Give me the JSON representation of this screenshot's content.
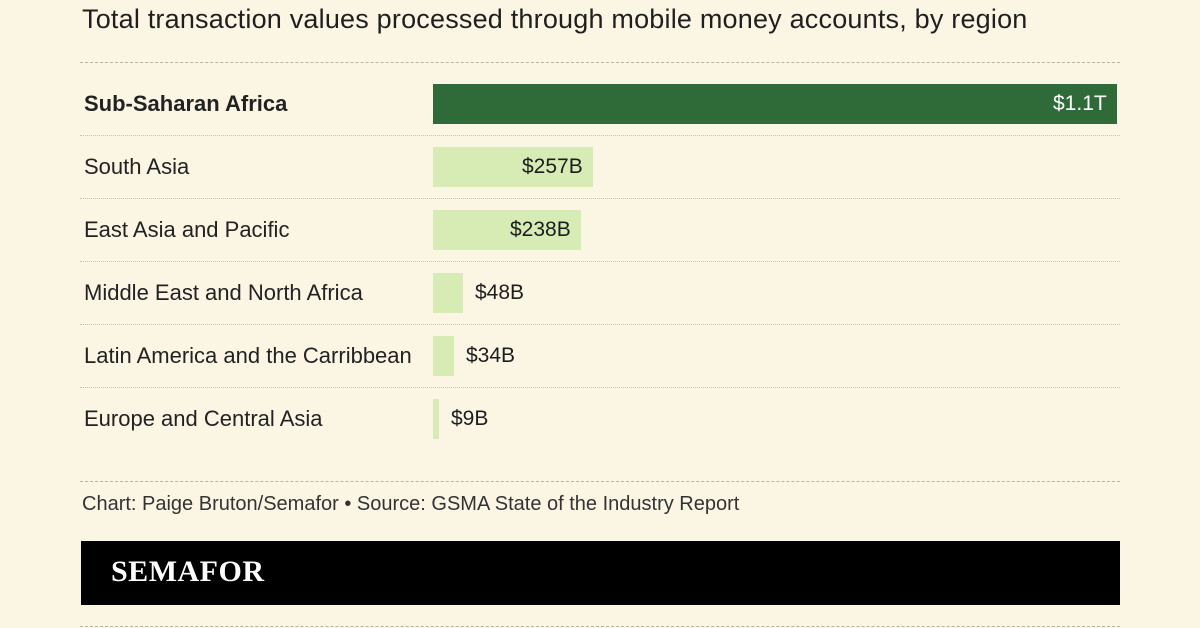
{
  "chart_data": {
    "type": "bar",
    "orientation": "horizontal",
    "title": "Total transaction values processed through mobile money accounts, by region",
    "categories": [
      "Sub-Saharan Africa",
      "South Asia",
      "East Asia and Pacific",
      "Middle East and North Africa",
      "Latin America and the Carribbean",
      "Europe and Central Asia"
    ],
    "values": [
      1100,
      257,
      238,
      48,
      34,
      9
    ],
    "unit": "billion USD",
    "value_labels": [
      "$1.1T",
      "$257B",
      "$238B",
      "$48B",
      "$34B",
      "$9B"
    ],
    "highlight_index": 0,
    "xlim": [
      0,
      1100
    ],
    "colors": {
      "highlight": "#2f6b38",
      "normal": "#d7ebb4",
      "highlight_text": "#ffffff"
    }
  },
  "footer": {
    "credit": "Chart: Paige Bruton/Semafor • Source: GSMA State of the Industry Report"
  },
  "brand": {
    "name": "SEMAFOR"
  }
}
